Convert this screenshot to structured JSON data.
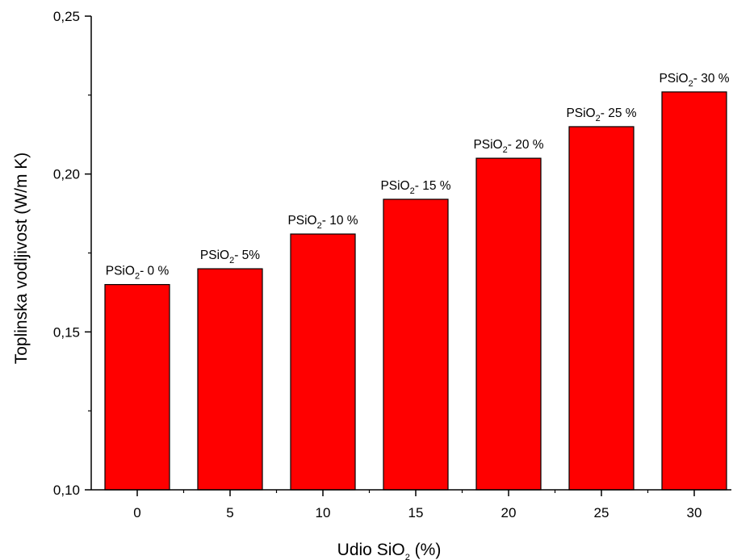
{
  "chart_data": {
    "type": "bar",
    "categories": [
      "0",
      "5",
      "10",
      "15",
      "20",
      "25",
      "30"
    ],
    "values": [
      0.165,
      0.17,
      0.181,
      0.192,
      0.205,
      0.215,
      0.226
    ],
    "bar_labels": [
      {
        "prefix": "PSiO",
        "sub": "2",
        "suffix": "- 0 %"
      },
      {
        "prefix": "PSiO",
        "sub": "2",
        "suffix": "- 5%"
      },
      {
        "prefix": "PSiO",
        "sub": "2",
        "suffix": "- 10 %"
      },
      {
        "prefix": "PSiO",
        "sub": "2",
        "suffix": "- 15 %"
      },
      {
        "prefix": "PSiO",
        "sub": "2",
        "suffix": "- 20 %"
      },
      {
        "prefix": "PSiO",
        "sub": "2",
        "suffix": "- 25 %"
      },
      {
        "prefix": "PSiO",
        "sub": "2",
        "suffix": "- 30 %"
      }
    ],
    "ylim": [
      0.1,
      0.25
    ],
    "yticks": [
      {
        "value": 0.1,
        "label": "0,10"
      },
      {
        "value": 0.15,
        "label": "0,15"
      },
      {
        "value": 0.2,
        "label": "0,20"
      },
      {
        "value": 0.25,
        "label": "0,25"
      }
    ],
    "xlabel": {
      "prefix": "Udio SiO",
      "sub": "2",
      "suffix": " (%)"
    },
    "ylabel": "Toplinska vodljivost (W/m K)",
    "bar_color": "#ff0000",
    "bar_edge_color": "#000000",
    "grid": false
  }
}
